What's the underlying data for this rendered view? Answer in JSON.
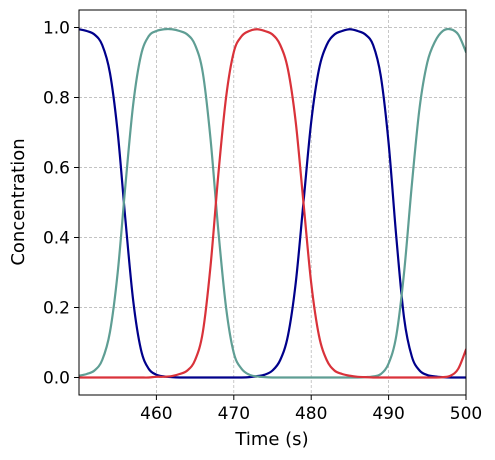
{
  "chart_data": {
    "type": "line",
    "title": "",
    "xlabel": "Time (s)",
    "ylabel": "Concentration",
    "xlim": [
      450,
      500
    ],
    "ylim": [
      -0.05,
      1.05
    ],
    "xticks": [
      460,
      470,
      480,
      490,
      500
    ],
    "xtick_labels": [
      "460",
      "470",
      "480",
      "490",
      "500"
    ],
    "yticks": [
      0.0,
      0.2,
      0.4,
      0.6,
      0.8,
      1.0
    ],
    "ytick_labels": [
      "0.0",
      "0.2",
      "0.4",
      "0.6",
      "0.8",
      "1.0"
    ],
    "grid": true,
    "x": [
      450,
      451,
      452,
      453,
      454,
      455,
      456,
      457,
      458,
      459,
      460,
      461,
      462,
      463,
      464,
      465,
      466,
      467,
      468,
      469,
      470,
      471,
      472,
      473,
      474,
      475,
      476,
      477,
      478,
      479,
      480,
      481,
      482,
      483,
      484,
      485,
      486,
      487,
      488,
      489,
      490,
      491,
      492,
      493,
      494,
      495,
      496,
      497,
      498,
      499,
      500
    ],
    "series": [
      {
        "color": "#00008b",
        "values": [
          0.995,
          0.99,
          0.98,
          0.95,
          0.87,
          0.7,
          0.45,
          0.22,
          0.08,
          0.025,
          0.008,
          0.003,
          0.001,
          0.0,
          0.0,
          0.0,
          0.0,
          0.0,
          0.0,
          0.0,
          0.0,
          0.0,
          0.001,
          0.004,
          0.008,
          0.02,
          0.05,
          0.12,
          0.27,
          0.5,
          0.73,
          0.88,
          0.95,
          0.98,
          0.99,
          0.995,
          0.99,
          0.98,
          0.95,
          0.86,
          0.67,
          0.4,
          0.17,
          0.06,
          0.02,
          0.007,
          0.003,
          0.001,
          0.0,
          0.0,
          0.0
        ]
      },
      {
        "color": "#5f9e94",
        "values": [
          0.005,
          0.01,
          0.02,
          0.05,
          0.13,
          0.3,
          0.55,
          0.78,
          0.92,
          0.975,
          0.99,
          0.995,
          0.995,
          0.99,
          0.98,
          0.95,
          0.87,
          0.68,
          0.42,
          0.2,
          0.07,
          0.025,
          0.008,
          0.003,
          0.001,
          0.0,
          0.0,
          0.0,
          0.0,
          0.0,
          0.0,
          0.0,
          0.0,
          0.0,
          0.0,
          0.0,
          0.0,
          0.001,
          0.003,
          0.01,
          0.04,
          0.12,
          0.3,
          0.55,
          0.77,
          0.9,
          0.96,
          0.99,
          0.995,
          0.98,
          0.93
        ]
      },
      {
        "color": "#d9323a",
        "values": [
          0.0,
          0.0,
          0.0,
          0.0,
          0.0,
          0.0,
          0.0,
          0.0,
          0.0,
          0.0,
          0.002,
          0.002,
          0.004,
          0.01,
          0.02,
          0.05,
          0.13,
          0.32,
          0.58,
          0.8,
          0.93,
          0.975,
          0.99,
          0.995,
          0.99,
          0.98,
          0.95,
          0.88,
          0.73,
          0.5,
          0.27,
          0.12,
          0.05,
          0.02,
          0.01,
          0.005,
          0.002,
          0.001,
          0.0,
          0.0,
          0.0,
          0.0,
          0.0,
          0.0,
          0.0,
          0.0,
          0.0,
          0.001,
          0.005,
          0.025,
          0.08
        ]
      }
    ]
  }
}
